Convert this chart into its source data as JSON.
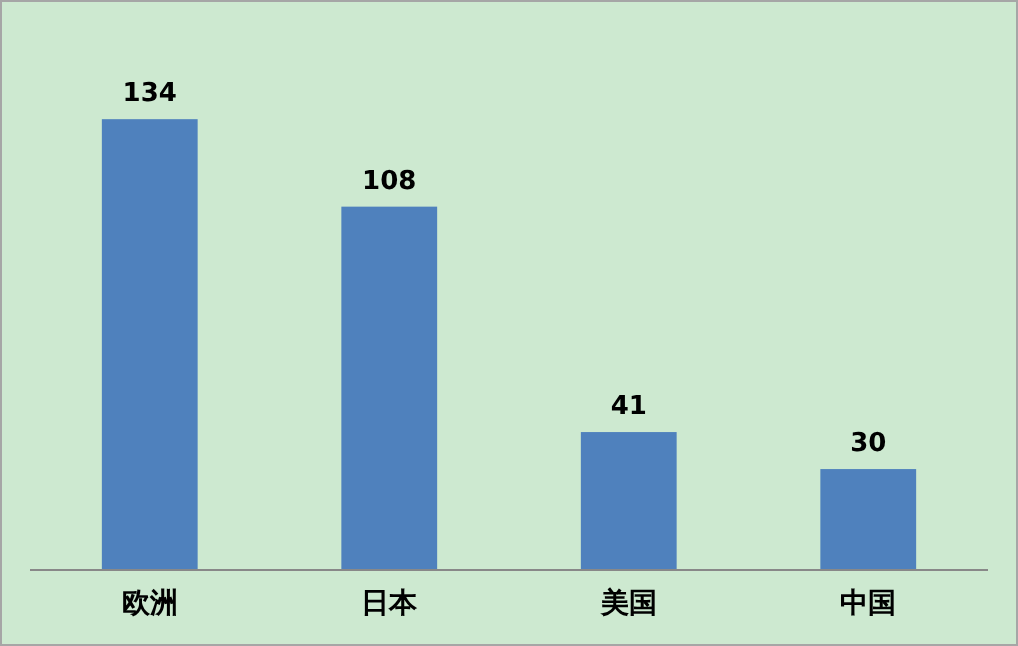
{
  "chart_data": {
    "type": "bar",
    "categories": [
      "欧洲",
      "日本",
      "美国",
      "中国"
    ],
    "values": [
      134,
      108,
      41,
      30
    ],
    "color": "#4f81bd",
    "data_labels": true
  }
}
